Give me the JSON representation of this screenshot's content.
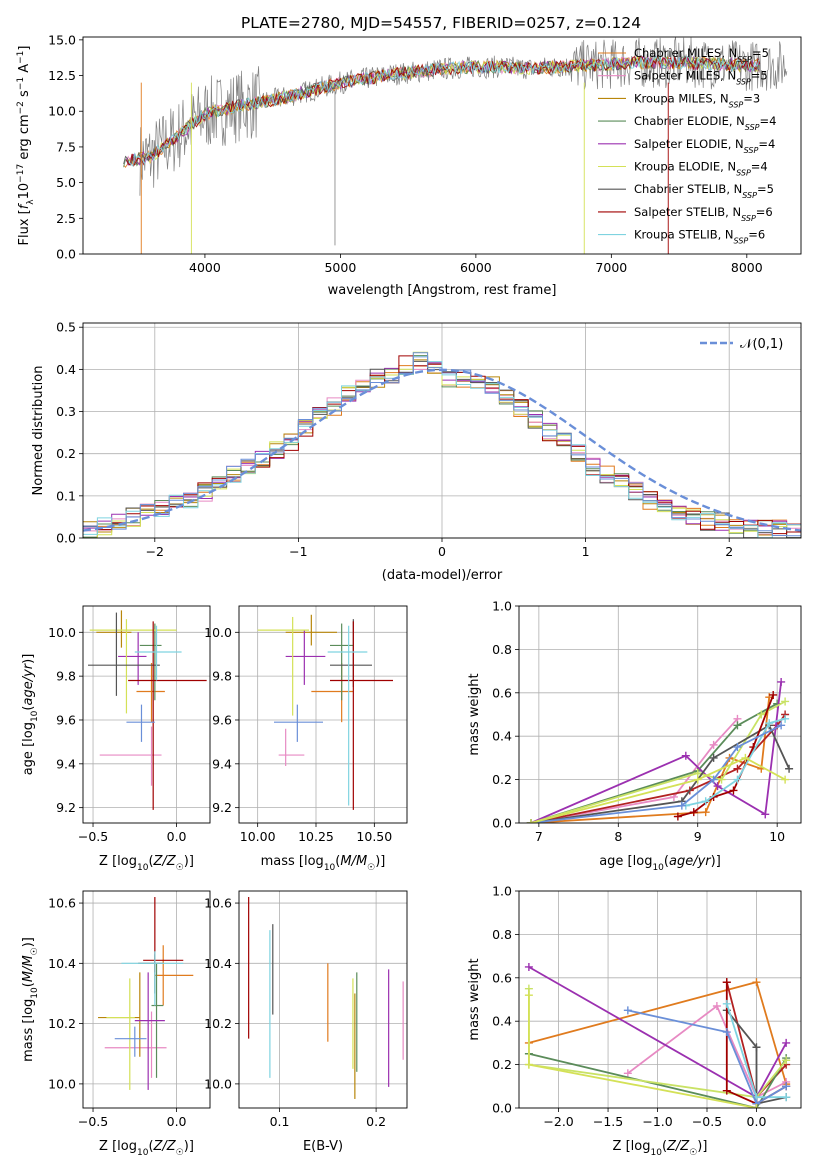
{
  "title": "PLATE=2780, MJD=54557, FIBERID=0257, z=0.124",
  "colors": [
    "#e07b1e",
    "#e78ac3",
    "#b8860b",
    "#5b8c5a",
    "#9b30b0",
    "#d4e157",
    "#555555",
    "#a00000",
    "#7fd3e0",
    "#6a8fd8",
    "#c9e265"
  ],
  "legend": [
    "Chabrier MILES, N_SSP=5",
    "Salpeter MILES, N_SSP=5",
    "Kroupa MILES, N_SSP=3",
    "Chabrier ELODIE, N_SSP=4",
    "Salpeter ELODIE, N_SSP=4",
    "Kroupa ELODIE, N_SSP=4",
    "Chabrier STELIB, N_SSP=5",
    "Salpeter STELIB, N_SSP=6",
    "Kroupa STELIB, N_SSP=6"
  ],
  "chart_data": [
    {
      "type": "line",
      "title": "PLATE=2780, MJD=54557, FIBERID=0257, z=0.124",
      "xlabel": "wavelength [Angstrom, rest frame]",
      "ylabel": "Flux [f_λ 10^-17 erg cm^-2 s^-1 A^-1]",
      "xlim": [
        3100,
        8400
      ],
      "ylim": [
        0,
        15.2
      ],
      "xticks": [
        4000,
        5000,
        6000,
        7000,
        8000
      ],
      "yticks": [
        0.0,
        2.5,
        5.0,
        7.5,
        10.0,
        12.5,
        15.0
      ],
      "ytick_labels": [
        "0.0",
        "2.5",
        "5.0",
        "7.5",
        "10.0",
        "12.5",
        "15.0"
      ],
      "data_trace": {
        "name": "data",
        "x": [
          3400,
          3600,
          3800,
          4000,
          4200,
          4400,
          4600,
          4800,
          5000,
          5200,
          5400,
          5600,
          5800,
          6000,
          6200,
          6400,
          6600,
          6800,
          7000,
          7200,
          7400,
          7600,
          7800,
          8000
        ],
        "y": [
          6.5,
          6.8,
          8.3,
          9.8,
          10.3,
          10.6,
          11.0,
          11.5,
          12.0,
          12.3,
          12.6,
          12.8,
          13.0,
          13.1,
          13.1,
          13.0,
          13.1,
          13.2,
          13.3,
          13.4,
          13.4,
          13.4,
          13.3,
          13.2
        ]
      },
      "series_names": [
        "Chabrier MILES, N_SSP=5",
        "Salpeter MILES, N_SSP=5",
        "Kroupa MILES, N_SSP=3",
        "Chabrier ELODIE, N_SSP=4",
        "Salpeter ELODIE, N_SSP=4",
        "Kroupa ELODIE, N_SSP=4",
        "Chabrier STELIB, N_SSP=5",
        "Salpeter STELIB, N_SSP=6",
        "Kroupa STELIB, N_SSP=6"
      ]
    },
    {
      "type": "histogram",
      "xlabel": "(data-model)/error",
      "ylabel": "Normed distribution",
      "xlim": [
        -2.5,
        2.5
      ],
      "ylim": [
        0,
        0.51
      ],
      "xticks": [
        -2,
        -1,
        0,
        1,
        2
      ],
      "xtick_labels": [
        "−2",
        "−1",
        "0",
        "1",
        "2"
      ],
      "yticks": [
        0.0,
        0.1,
        0.2,
        0.3,
        0.4,
        0.5
      ],
      "ytick_labels": [
        "0.0",
        "0.1",
        "0.2",
        "0.3",
        "0.4",
        "0.5"
      ],
      "bin_edges_start": -2.5,
      "bin_width": 0.1,
      "mean_hist": [
        0.02,
        0.03,
        0.04,
        0.05,
        0.06,
        0.07,
        0.08,
        0.09,
        0.11,
        0.13,
        0.15,
        0.17,
        0.19,
        0.21,
        0.23,
        0.26,
        0.29,
        0.31,
        0.34,
        0.36,
        0.38,
        0.39,
        0.41,
        0.42,
        0.4,
        0.38,
        0.38,
        0.37,
        0.36,
        0.34,
        0.31,
        0.28,
        0.25,
        0.23,
        0.2,
        0.17,
        0.15,
        0.13,
        0.11,
        0.09,
        0.08,
        0.06,
        0.05,
        0.04,
        0.04,
        0.03,
        0.02,
        0.02,
        0.02,
        0.02
      ],
      "gaussian_label": "𝒩(0,1)"
    },
    {
      "type": "errorbar",
      "xlabel": "Z [log10(Z/Z☉)]",
      "ylabel": "age [log10(age/yr)]",
      "xlim": [
        -0.56,
        0.2
      ],
      "ylim": [
        9.13,
        10.12
      ],
      "xticks": [
        -0.5,
        0.0
      ],
      "xtick_labels": [
        "−0.5",
        "0.0"
      ],
      "yticks": [
        9.2,
        9.4,
        9.6,
        9.8,
        10.0
      ],
      "ytick_labels": [
        "9.2",
        "9.4",
        "9.6",
        "9.8",
        "10.0"
      ],
      "points": [
        {
          "x": -0.15,
          "xerr": [
            0.09,
            0.08
          ],
          "y": 9.73,
          "yerr": [
            0.14,
            0.13
          ]
        },
        {
          "x": -0.15,
          "xerr": [
            0.31,
            0.06
          ],
          "y": 9.44,
          "yerr": [
            0.14,
            0.13
          ]
        },
        {
          "x": -0.33,
          "xerr": [
            0.15,
            0.06
          ],
          "y": 10.0,
          "yerr": [
            0.07,
            0.1
          ]
        },
        {
          "x": -0.13,
          "xerr": [
            0.09,
            0.04
          ],
          "y": 9.94,
          "yerr": [
            0.25,
            0.1
          ]
        },
        {
          "x": -0.23,
          "xerr": [
            0.12,
            0.05
          ],
          "y": 9.89,
          "yerr": [
            0.13,
            0.11
          ]
        },
        {
          "x": -0.3,
          "xerr": [
            0.22,
            0.3
          ],
          "y": 10.01,
          "yerr": [
            0.38,
            0.05
          ]
        },
        {
          "x": -0.36,
          "xerr": [
            0.17,
            0.26
          ],
          "y": 9.85,
          "yerr": [
            0.14,
            0.24
          ]
        },
        {
          "x": -0.14,
          "xerr": [
            0.15,
            0.32
          ],
          "y": 9.78,
          "yerr": [
            0.59,
            0.27
          ]
        },
        {
          "x": -0.12,
          "xerr": [
            0.13,
            0.15
          ],
          "y": 9.91,
          "yerr": [
            0.13,
            0.12
          ]
        },
        {
          "x": -0.21,
          "xerr": [
            0.09,
            0.08
          ],
          "y": 9.59,
          "yerr": [
            0.09,
            0.08
          ]
        }
      ]
    },
    {
      "type": "errorbar",
      "xlabel": "mass [log10(M/M☉)]",
      "ylabel": "",
      "xlim": [
        9.92,
        10.64
      ],
      "ylim": [
        9.13,
        10.12
      ],
      "xticks": [
        10.0,
        10.25,
        10.5
      ],
      "xtick_labels": [
        "10.00",
        "10.25",
        "10.50"
      ],
      "yticks": [
        9.2,
        9.4,
        9.6,
        9.8,
        10.0
      ],
      "ytick_labels": [
        "9.2",
        "9.4",
        "9.6",
        "9.8",
        "10.0"
      ],
      "points": [
        {
          "x": 10.36,
          "xerr": [
            0.13,
            0.05
          ],
          "y": 9.73,
          "yerr": [
            0.14,
            0.13
          ]
        },
        {
          "x": 10.12,
          "xerr": [
            0.03,
            0.08
          ],
          "y": 9.44,
          "yerr": [
            0.05,
            0.12
          ]
        },
        {
          "x": 10.23,
          "xerr": [
            0.11,
            0.11
          ],
          "y": 10.0,
          "yerr": [
            0.06,
            0.08
          ]
        },
        {
          "x": 10.36,
          "xerr": [
            0.05,
            0.05
          ],
          "y": 9.94,
          "yerr": [
            0.25,
            0.1
          ]
        },
        {
          "x": 10.2,
          "xerr": [
            0.08,
            0.09
          ],
          "y": 9.89,
          "yerr": [
            0.13,
            0.12
          ]
        },
        {
          "x": 10.15,
          "xerr": [
            0.15,
            0.07
          ],
          "y": 10.01,
          "yerr": [
            0.39,
            0.06
          ]
        },
        {
          "x": 10.41,
          "xerr": [
            0.1,
            0.08
          ],
          "y": 9.85,
          "yerr": [
            0.1,
            0.21
          ]
        },
        {
          "x": 10.41,
          "xerr": [
            0.1,
            0.17
          ],
          "y": 9.78,
          "yerr": [
            0.59,
            0.27
          ]
        },
        {
          "x": 10.39,
          "xerr": [
            0.09,
            0.08
          ],
          "y": 9.91,
          "yerr": [
            0.7,
            0.12
          ]
        },
        {
          "x": 10.17,
          "xerr": [
            0.1,
            0.11
          ],
          "y": 9.59,
          "yerr": [
            0.09,
            0.08
          ]
        }
      ]
    },
    {
      "type": "line",
      "xlabel": "age [log10(age/yr)]",
      "ylabel": "mass weight",
      "xlim": [
        6.75,
        10.3
      ],
      "ylim": [
        0,
        1.0
      ],
      "xticks": [
        7,
        8,
        9,
        10
      ],
      "xtick_labels": [
        "7",
        "8",
        "9",
        "10"
      ],
      "yticks": [
        0.0,
        0.2,
        0.4,
        0.6,
        0.8,
        1.0
      ],
      "ytick_labels": [
        "0.0",
        "0.2",
        "0.4",
        "0.6",
        "0.8",
        "1.0"
      ],
      "series": [
        {
          "x": [
            6.9,
            9.1,
            9.4,
            9.8,
            9.9
          ],
          "y": [
            0.0,
            0.05,
            0.3,
            0.25,
            0.58
          ]
        },
        {
          "x": [
            6.9,
            8.7,
            9.2,
            9.5
          ],
          "y": [
            0.0,
            0.12,
            0.36,
            0.48
          ]
        },
        {
          "x": [
            6.9,
            8.9,
            9.5,
            10.0,
            10.1
          ],
          "y": [
            0.0,
            0.15,
            0.25,
            0.45,
            0.5
          ]
        },
        {
          "x": [
            6.9,
            9.0,
            9.5,
            10.0
          ],
          "y": [
            0.0,
            0.24,
            0.45,
            0.55
          ]
        },
        {
          "x": [
            6.9,
            8.85,
            9.25,
            9.85,
            10.05
          ],
          "y": [
            0.0,
            0.31,
            0.17,
            0.04,
            0.65
          ]
        },
        {
          "x": [
            6.9,
            9.0,
            9.3,
            9.8,
            10.1
          ],
          "y": [
            0.0,
            0.23,
            0.2,
            0.5,
            0.56
          ]
        },
        {
          "x": [
            6.9,
            8.8,
            9.2,
            9.9,
            10.15
          ],
          "y": [
            0.0,
            0.1,
            0.3,
            0.45,
            0.25
          ]
        },
        {
          "x": [
            8.75,
            8.95,
            9.2,
            9.45,
            9.7,
            9.95
          ],
          "y": [
            0.03,
            0.05,
            0.12,
            0.15,
            0.35,
            0.59
          ]
        },
        {
          "x": [
            8.85,
            9.1,
            9.5,
            9.9,
            10.1
          ],
          "y": [
            0.08,
            0.1,
            0.2,
            0.46,
            0.48
          ]
        },
        {
          "x": [
            6.9,
            8.8,
            9.2,
            9.5,
            10.05
          ],
          "y": [
            0.0,
            0.08,
            0.2,
            0.35,
            0.45
          ]
        },
        {
          "x": [
            6.9,
            9.0,
            9.6,
            10.1
          ],
          "y": [
            0.0,
            0.2,
            0.3,
            0.2
          ]
        }
      ]
    },
    {
      "type": "errorbar",
      "xlabel": "Z [log10(Z/Z☉)]",
      "ylabel": "mass [log10(M/M☉)]",
      "xlim": [
        -0.56,
        0.2
      ],
      "ylim": [
        9.92,
        10.64
      ],
      "xticks": [
        -0.5,
        0.0
      ],
      "xtick_labels": [
        "−0.5",
        "0.0"
      ],
      "yticks": [
        10.0,
        10.2,
        10.4,
        10.6
      ],
      "ytick_labels": [
        "10.0",
        "10.2",
        "10.4",
        "10.6"
      ],
      "points": [
        {
          "x": -0.08,
          "xerr": [
            0.05,
            0.18
          ],
          "y": 10.36,
          "yerr": [
            0.1,
            0.1
          ]
        },
        {
          "x": -0.15,
          "xerr": [
            0.28,
            0.09
          ],
          "y": 10.12,
          "yerr": [
            0.1,
            0.12
          ]
        },
        {
          "x": -0.22,
          "xerr": [
            0.25,
            0.0
          ],
          "y": 10.22,
          "yerr": [
            0.13,
            0.15
          ]
        },
        {
          "x": -0.12,
          "xerr": [
            0.03,
            0.04
          ],
          "y": 10.26,
          "yerr": [
            0.24,
            0.14
          ]
        },
        {
          "x": -0.17,
          "xerr": [
            0.08,
            0.1
          ],
          "y": 10.21,
          "yerr": [
            0.23,
            0.16
          ]
        },
        {
          "x": -0.28,
          "xerr": [
            0.14,
            0.03
          ],
          "y": 10.22,
          "yerr": [
            0.24,
            0.13
          ]
        },
        {
          "x": -0.13,
          "xerr": [
            0.1,
            0.05
          ],
          "y": 10.4,
          "yerr": [
            0.1,
            0.03
          ]
        },
        {
          "x": -0.13,
          "xerr": [
            0.07,
            0.17
          ],
          "y": 10.41,
          "yerr": [
            0.04,
            0.21
          ]
        },
        {
          "x": -0.13,
          "xerr": [
            0.2,
            0.17
          ],
          "y": 10.4,
          "yerr": [
            0.14,
            0.04
          ]
        },
        {
          "x": -0.25,
          "xerr": [
            0.12,
            0.07
          ],
          "y": 10.15,
          "yerr": [
            0.06,
            0.04
          ]
        }
      ]
    },
    {
      "type": "errorbar",
      "xlabel": "E(B-V)",
      "ylabel": "",
      "xlim": [
        0.058,
        0.232
      ],
      "ylim": [
        9.92,
        10.64
      ],
      "xticks": [
        0.1,
        0.2
      ],
      "xtick_labels": [
        "0.1",
        "0.2"
      ],
      "yticks": [
        10.0,
        10.2,
        10.4,
        10.6
      ],
      "ytick_labels": [
        "10.0",
        "10.2",
        "10.4",
        "10.6"
      ],
      "points": [
        {
          "x": 0.15,
          "xerr": [
            0,
            0
          ],
          "y": 10.27,
          "yerr": [
            0.13,
            0.13
          ]
        },
        {
          "x": 0.228,
          "xerr": [
            0,
            0
          ],
          "y": 10.21,
          "yerr": [
            0.13,
            0.13
          ]
        },
        {
          "x": 0.178,
          "xerr": [
            0,
            0
          ],
          "y": 10.2,
          "yerr": [
            0.25,
            0.1
          ]
        },
        {
          "x": 0.18,
          "xerr": [
            0,
            0
          ],
          "y": 10.2,
          "yerr": [
            0.16,
            0.17
          ]
        },
        {
          "x": 0.213,
          "xerr": [
            0,
            0
          ],
          "y": 10.18,
          "yerr": [
            0.19,
            0.2
          ]
        },
        {
          "x": 0.176,
          "xerr": [
            0,
            0
          ],
          "y": 10.2,
          "yerr": [
            0.15,
            0.15
          ]
        },
        {
          "x": 0.093,
          "xerr": [
            0,
            0
          ],
          "y": 10.38,
          "yerr": [
            0.15,
            0.15
          ]
        },
        {
          "x": 0.068,
          "xerr": [
            0,
            0
          ],
          "y": 10.38,
          "yerr": [
            0.23,
            0.24
          ]
        },
        {
          "x": 0.09,
          "xerr": [
            0,
            0
          ],
          "y": 10.27,
          "yerr": [
            0.25,
            0.24
          ]
        }
      ]
    },
    {
      "type": "line",
      "xlabel": "Z [log10(Z/Z☉)]",
      "ylabel": "mass weight",
      "xlim": [
        -2.4,
        0.45
      ],
      "ylim": [
        0,
        1.0
      ],
      "xticks": [
        -2.0,
        -1.5,
        -1.0,
        -0.5,
        0.0
      ],
      "xtick_labels": [
        "−2.0",
        "−1.5",
        "−1.0",
        "−0.5",
        "0.0"
      ],
      "yticks": [
        0.0,
        0.2,
        0.4,
        0.6,
        0.8,
        1.0
      ],
      "ytick_labels": [
        "0.0",
        "0.2",
        "0.4",
        "0.6",
        "0.8",
        "1.0"
      ],
      "series": [
        {
          "x": [
            -2.3,
            0.0,
            0.3
          ],
          "y": [
            0.3,
            0.58,
            0.11
          ]
        },
        {
          "x": [
            -1.3,
            -0.4,
            0.0,
            0.3
          ],
          "y": [
            0.16,
            0.47,
            0.05,
            0.12
          ]
        },
        {
          "x": [
            -0.3,
            0.0,
            0.3
          ],
          "y": [
            0.58,
            0.05,
            0.2
          ]
        },
        {
          "x": [
            -2.3,
            0.0,
            0.3
          ],
          "y": [
            0.25,
            0.0,
            0.23
          ]
        },
        {
          "x": [
            -2.3,
            0.0,
            0.3
          ],
          "y": [
            0.65,
            0.05,
            0.3
          ]
        },
        {
          "x": [
            -2.3,
            -2.3,
            0.0,
            0.3
          ],
          "y": [
            0.55,
            0.2,
            0.05,
            0.22
          ]
        },
        {
          "x": [
            -0.3,
            0.0,
            0.0,
            0.3
          ],
          "y": [
            0.45,
            0.28,
            0.02,
            0.05
          ]
        },
        {
          "x": [
            -0.3,
            -0.3,
            0.0,
            0.3
          ],
          "y": [
            0.58,
            0.08,
            0.02,
            0.1
          ]
        },
        {
          "x": [
            -0.3,
            0.0,
            0.3
          ],
          "y": [
            0.48,
            0.05,
            0.05
          ]
        },
        {
          "x": [
            -1.3,
            -0.3,
            0.0,
            0.3
          ],
          "y": [
            0.45,
            0.35,
            0.02,
            0.1
          ]
        },
        {
          "x": [
            -2.3,
            -2.3,
            0.0
          ],
          "y": [
            0.52,
            0.2,
            0.0
          ]
        }
      ]
    }
  ]
}
